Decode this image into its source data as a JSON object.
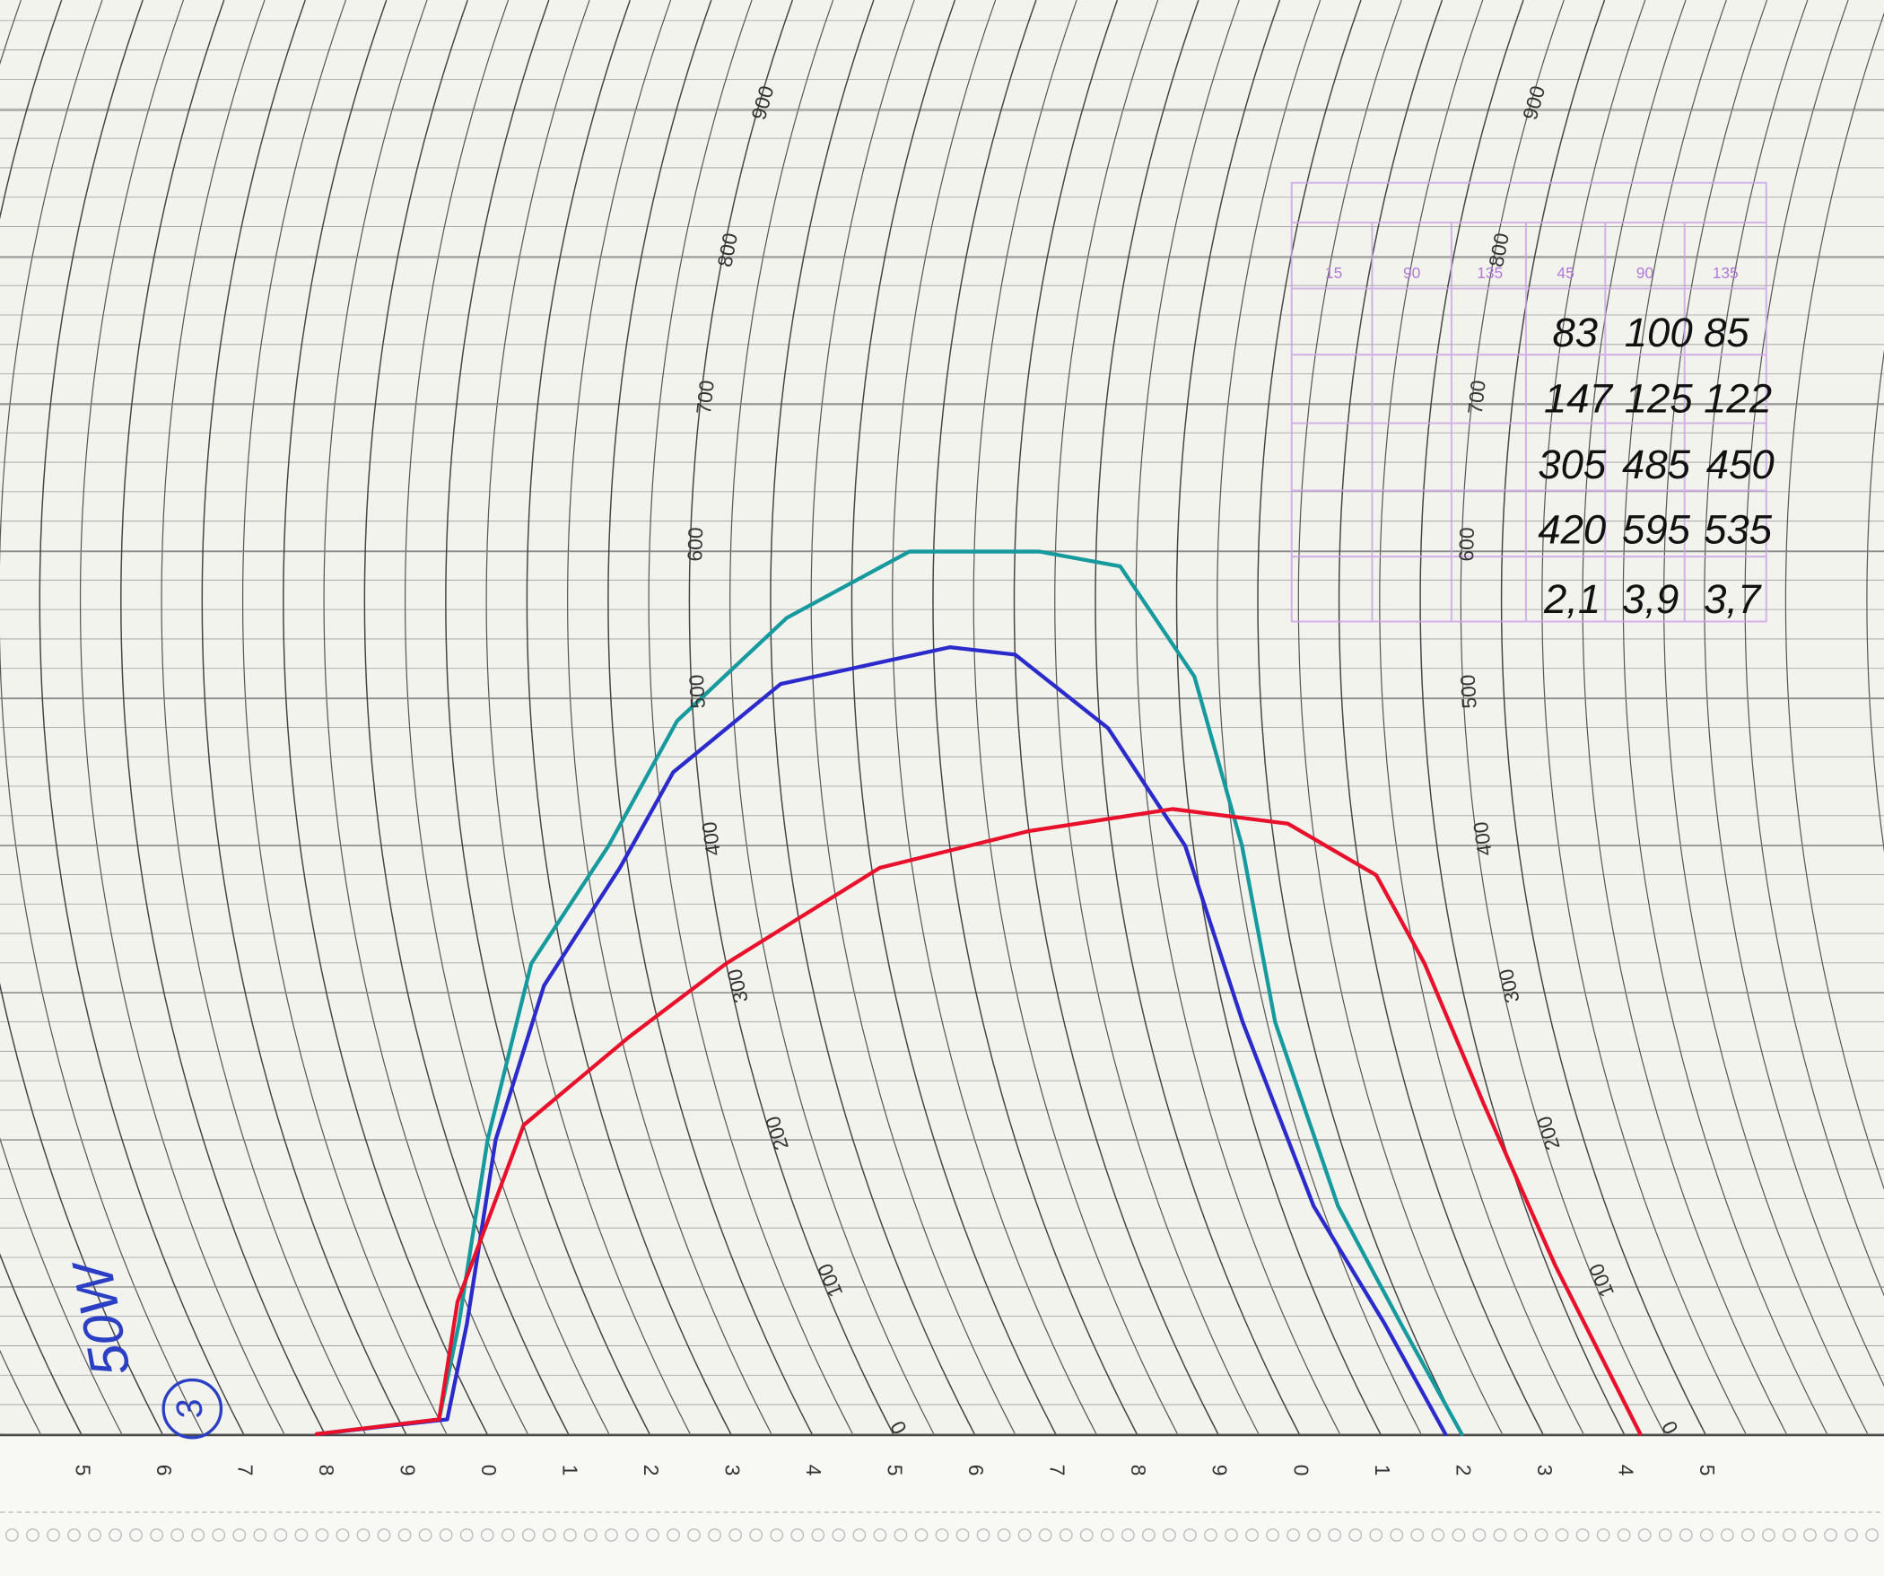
{
  "chart_data": {
    "type": "line",
    "xlim": [
      4,
      27.2
    ],
    "ylim": [
      0,
      975
    ],
    "xticks": [
      5,
      6,
      7,
      8,
      9,
      {
        "value": 10,
        "label": "0"
      },
      {
        "value": 11,
        "label": "1"
      },
      {
        "value": 12,
        "label": "2"
      },
      {
        "value": 13,
        "label": "3"
      },
      {
        "value": 14,
        "label": "4"
      },
      {
        "value": 15,
        "label": "5"
      },
      {
        "value": 16,
        "label": "6"
      },
      {
        "value": 17,
        "label": "7"
      },
      {
        "value": 18,
        "label": "8"
      },
      {
        "value": 19,
        "label": "9"
      },
      {
        "value": 20,
        "label": "0"
      },
      {
        "value": 21,
        "label": "1"
      },
      {
        "value": 22,
        "label": "2"
      },
      {
        "value": 23,
        "label": "3"
      },
      {
        "value": 24,
        "label": "4"
      },
      {
        "value": 25,
        "label": "5"
      }
    ],
    "yticks": [
      0,
      100,
      200,
      300,
      400,
      500,
      600,
      700,
      800,
      900
    ],
    "grid": true,
    "series": [
      {
        "color": "#179a9e",
        "x": [
          7.9,
          9.5,
          10.3,
          11.5,
          12.6,
          13.8,
          14.8,
          16.2,
          17.7,
          19.3,
          20.3,
          21.2,
          21.6,
          21.6,
          21.7,
          21.9,
          22.0
        ],
        "values": [
          0,
          10,
          75,
          200,
          320,
          400,
          485,
          555,
          600,
          600,
          590,
          515,
          400,
          280,
          155,
          75,
          0
        ]
      },
      {
        "color": "#2b2bcc",
        "x": [
          7.9,
          9.6,
          10.4,
          11.6,
          12.7,
          13.9,
          14.7,
          16.1,
          18.2,
          19.0,
          20.1,
          20.9,
          21.2,
          21.4,
          21.7,
          21.8
        ],
        "values": [
          0,
          10,
          75,
          200,
          305,
          385,
          450,
          510,
          535,
          530,
          480,
          400,
          280,
          155,
          75,
          0
        ]
      },
      {
        "color": "#e8102a",
        "x": [
          7.9,
          9.5,
          10.4,
          12.0,
          13.6,
          15.0,
          17.1,
          19.0,
          20.8,
          22.2,
          23.2,
          23.6,
          23.9,
          24.1,
          24.2
        ],
        "values": [
          0,
          10,
          90,
          210,
          270,
          320,
          385,
          410,
          425,
          415,
          380,
          320,
          225,
          115,
          0
        ]
      }
    ]
  },
  "annotations": {
    "table": [
      [
        "83",
        "100",
        "85"
      ],
      [
        "147",
        "125",
        "122"
      ],
      [
        "305",
        "485",
        "450"
      ],
      [
        "420",
        "595",
        "535"
      ],
      [
        "2,1",
        "3,9",
        "3,7"
      ]
    ],
    "note": "50W",
    "circled": "3"
  },
  "stamp": {
    "labels": [
      "15",
      "90",
      "135",
      "45",
      "90",
      "135"
    ]
  }
}
